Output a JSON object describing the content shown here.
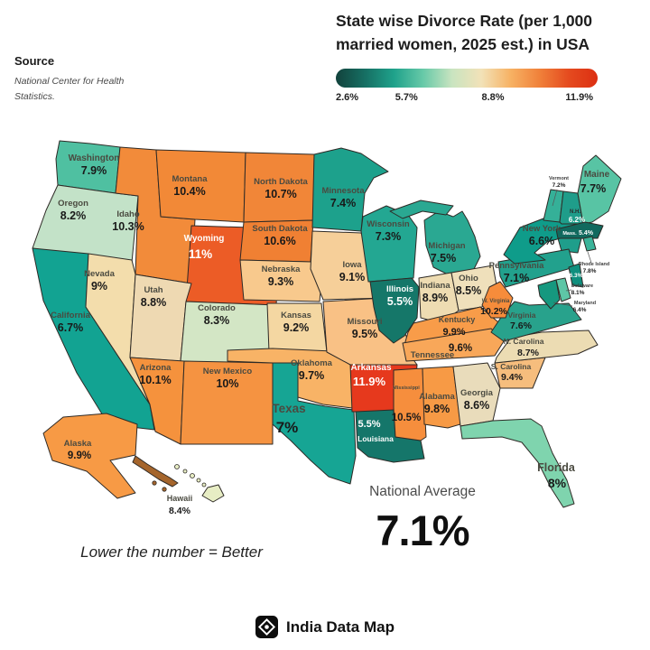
{
  "title": {
    "line1": "State wise Divorce Rate (per 1,000",
    "line2": "married women, 2025 est.) in USA"
  },
  "source": {
    "heading": "Source",
    "line1": "National Center for Health",
    "line2": "Statistics."
  },
  "legend": {
    "ticks": [
      "2.6%",
      "5.7%",
      "8.8%",
      "11.9%"
    ],
    "gradient": [
      "#12423c",
      "#166f63",
      "#1fa28b",
      "#67c9a8",
      "#c9e4c0",
      "#f2e2b8",
      "#f7b264",
      "#f0813a",
      "#e54b1f",
      "#dc2f12"
    ]
  },
  "note": "Lower the number = Better",
  "national_average": {
    "label": "National Average",
    "value": "7.1%"
  },
  "footer": {
    "brand": "India Data Map",
    "icon": "compass-diamond-icon"
  },
  "chart_data": {
    "type": "choropleth",
    "region": "United States",
    "metric": "Divorce rate per 1,000 married women (2025 est.)",
    "unit": "%",
    "scale_min": 2.6,
    "scale_max": 11.9,
    "national_average": 7.1,
    "states": [
      {
        "id": "WA",
        "name": "Washington",
        "value": 7.9,
        "display": "7.9%",
        "color": "#4fc0a1"
      },
      {
        "id": "OR",
        "name": "Oregon",
        "value": 8.2,
        "display": "8.2%",
        "color": "#c3e2c8"
      },
      {
        "id": "CA",
        "name": "California",
        "value": 6.7,
        "display": "6.7%",
        "color": "#12a392"
      },
      {
        "id": "NV",
        "name": "Nevada",
        "value": 9.0,
        "display": "9%",
        "color": "#f3ddac"
      },
      {
        "id": "ID",
        "name": "Idaho",
        "value": 10.3,
        "display": "10.3%",
        "color": "#f28b3a"
      },
      {
        "id": "MT",
        "name": "Montana",
        "value": 10.4,
        "display": "10.4%",
        "color": "#f28937"
      },
      {
        "id": "WY",
        "name": "Wyoming",
        "value": 11.0,
        "display": "11%",
        "color": "#ec5c26",
        "white_text": true
      },
      {
        "id": "UT",
        "name": "Utah",
        "value": 8.8,
        "display": "8.8%",
        "color": "#eed9b2"
      },
      {
        "id": "CO",
        "name": "Colorado",
        "value": 8.3,
        "display": "8.3%",
        "color": "#d3e6c5"
      },
      {
        "id": "AZ",
        "name": "Arizona",
        "value": 10.1,
        "display": "10.1%",
        "color": "#f5923d"
      },
      {
        "id": "NM",
        "name": "New Mexico",
        "value": 10.0,
        "display": "10%",
        "color": "#f59341"
      },
      {
        "id": "ND",
        "name": "North Dakota",
        "value": 10.7,
        "display": "10.7%",
        "color": "#f18638"
      },
      {
        "id": "SD",
        "name": "South Dakota",
        "value": 10.6,
        "display": "10.6%",
        "color": "#f08033"
      },
      {
        "id": "NE",
        "name": "Nebraska",
        "value": 9.3,
        "display": "9.3%",
        "color": "#f8c98d"
      },
      {
        "id": "KS",
        "name": "Kansas",
        "value": 9.2,
        "display": "9.2%",
        "color": "#f4d7a2"
      },
      {
        "id": "OK",
        "name": "Oklahoma",
        "value": 9.7,
        "display": "9.7%",
        "color": "#f8b366"
      },
      {
        "id": "TX",
        "name": "Texas",
        "value": 7.0,
        "display": "7%",
        "color": "#16a594"
      },
      {
        "id": "MN",
        "name": "Minnesota",
        "value": 7.4,
        "display": "7.4%",
        "color": "#1da18c"
      },
      {
        "id": "IA",
        "name": "Iowa",
        "value": 9.1,
        "display": "9.1%",
        "color": "#f6cf99"
      },
      {
        "id": "MO",
        "name": "Missouri",
        "value": 9.5,
        "display": "9.5%",
        "color": "#f9c185"
      },
      {
        "id": "AR",
        "name": "Arkansas",
        "value": 11.9,
        "display": "11.9%",
        "color": "#e6391d",
        "white_text": true
      },
      {
        "id": "LA",
        "name": "Louisiana",
        "value": 5.5,
        "display": "5.5%",
        "color": "#15766a",
        "white_text": true
      },
      {
        "id": "WI",
        "name": "Wisconsin",
        "value": 7.3,
        "display": "7.3%",
        "color": "#23a792"
      },
      {
        "id": "IL",
        "name": "Illinois",
        "value": 5.5,
        "display": "5.5%",
        "color": "#157769",
        "white_text": true
      },
      {
        "id": "MI",
        "name": "Michigan",
        "value": 7.5,
        "display": "7.5%",
        "color": "#2aa892"
      },
      {
        "id": "IN",
        "name": "Indiana",
        "value": 8.9,
        "display": "8.9%",
        "color": "#eedcb2"
      },
      {
        "id": "OH",
        "name": "Ohio",
        "value": 8.5,
        "display": "8.5%",
        "color": "#efe0bb"
      },
      {
        "id": "KY",
        "name": "Kentucky",
        "value": 9.9,
        "display": "9.9%",
        "color": "#f89c49"
      },
      {
        "id": "TN",
        "name": "Tennessee",
        "value": 9.6,
        "display": "9.6%",
        "color": "#f8a759"
      },
      {
        "id": "MS",
        "name": "Mississippi",
        "value": 10.5,
        "display": "10.5%",
        "color": "#f68e3d"
      },
      {
        "id": "AL",
        "name": "Alabama",
        "value": 9.8,
        "display": "9.8%",
        "color": "#f79a45"
      },
      {
        "id": "GA",
        "name": "Georgia",
        "value": 8.6,
        "display": "8.6%",
        "color": "#e9dcbb"
      },
      {
        "id": "FL",
        "name": "Florida",
        "value": 8.0,
        "display": "8%",
        "color": "#7fd4ae"
      },
      {
        "id": "SC",
        "name": "S. Carolina",
        "value": 9.4,
        "display": "9.4%",
        "color": "#f6bd7d"
      },
      {
        "id": "NC",
        "name": "N. Carolina",
        "value": 8.7,
        "display": "8.7%",
        "color": "#ecdcb3"
      },
      {
        "id": "VA",
        "name": "Virginia",
        "value": 7.6,
        "display": "7.6%",
        "color": "#28a28c"
      },
      {
        "id": "WV",
        "name": "W. Virginia",
        "value": 10.2,
        "display": "10.2%",
        "color": "#f68c3b"
      },
      {
        "id": "PA",
        "name": "Pennsylvania",
        "value": 7.1,
        "display": "7.1%",
        "color": "#22a18d"
      },
      {
        "id": "NY",
        "name": "New York",
        "value": 6.6,
        "display": "6.6%",
        "color": "#0f9c8a"
      },
      {
        "id": "VT",
        "name": "Vermont",
        "value": 7.2,
        "display": "7.2%",
        "color": "#35b098"
      },
      {
        "id": "NH",
        "name": "N.H.",
        "value": 6.2,
        "display": "6.2%",
        "color": "#1f9d8a",
        "white_text": true
      },
      {
        "id": "ME",
        "name": "Maine",
        "value": 7.7,
        "display": "7.7%",
        "color": "#58c4a4"
      },
      {
        "id": "MA",
        "name": "Mass.",
        "value": 5.4,
        "display": "5.4%",
        "color": "#11695e",
        "white_text": true
      },
      {
        "id": "RI",
        "name": "Rhode Island",
        "value": 7.8,
        "display": "7.8%",
        "color": "#3bb49a"
      },
      {
        "id": "NJ",
        "name": "New Jersey",
        "value": 6.3,
        "display": "6.3%",
        "color": "#0f8f7e",
        "white_text": true,
        "name_hidden": true
      },
      {
        "id": "DE",
        "name": "Delaware",
        "value": 8.1,
        "display": "8.1%",
        "color": "#5ec6a6"
      },
      {
        "id": "MD",
        "name": "Maryland",
        "value": 6.4,
        "display": "6.4%",
        "color": "#16987f"
      },
      {
        "id": "AK",
        "name": "Alaska",
        "value": 9.9,
        "display": "9.9%",
        "color": "#f79a45"
      },
      {
        "id": "HI",
        "name": "Hawaii",
        "value": 8.4,
        "display": "8.4%",
        "color": "#e7edc4"
      }
    ]
  }
}
